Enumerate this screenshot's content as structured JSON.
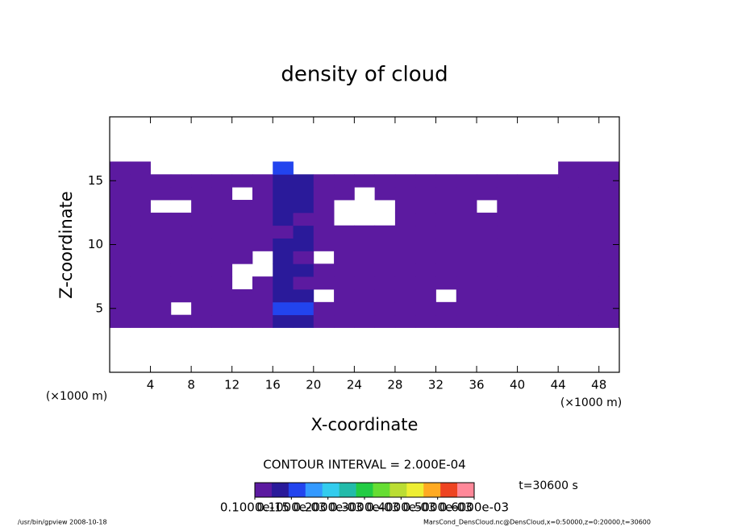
{
  "chart_data": {
    "type": "heatmap",
    "title": "density of cloud",
    "xlabel": "X-coordinate",
    "ylabel": "Z-coordinate",
    "xunit_left": "(×1000 m)",
    "xunit_right": "(×1000 m)",
    "contour_interval": "CONTOUR INTERVAL = 2.000E-04",
    "time_label": "t=30600 s",
    "footer_left": "/usr/bin/gpview   2008-10-18",
    "footer_right": "MarsCond_DensCloud.nc@DensCloud,x=0:50000,z=0:20000,t=30600",
    "xlim": [
      0,
      50
    ],
    "ylim": [
      0,
      20
    ],
    "xticks": [
      4,
      8,
      12,
      16,
      20,
      24,
      28,
      32,
      36,
      40,
      44,
      48
    ],
    "yticks": [
      5,
      10,
      15
    ],
    "xbins": [
      0,
      2,
      4,
      6,
      8,
      10,
      12,
      14,
      16,
      18,
      20,
      22,
      24,
      26,
      28,
      30,
      32,
      34,
      36,
      38,
      40,
      42,
      44,
      46,
      48,
      50
    ],
    "zbins": [
      3.5,
      4.5,
      5.5,
      6.5,
      7.5,
      8.5,
      9.5,
      10.5,
      11.5,
      12.5,
      13.5,
      14.5,
      15.5,
      16.5
    ],
    "zlim": [
      0,
      0.0006
    ],
    "colormap": [
      "#5c1aa0",
      "#2a1a9a",
      "#2244ee",
      "#3399ff",
      "#33ccee",
      "#22bbaa",
      "#22cc44",
      "#66dd33",
      "#bbdd33",
      "#eeee33",
      "#ffaa22",
      "#ee4422",
      "#ff8899"
    ],
    "colorbar_ticks": [
      {
        "value": 1e-16,
        "label": "0.1000e-15"
      },
      {
        "value": 0.0001,
        "label": "0.1000e-03"
      },
      {
        "value": 0.0002,
        "label": "0.2000e-03"
      },
      {
        "value": 0.0003,
        "label": "0.3000e-03"
      },
      {
        "value": 0.0004,
        "label": "0.4000e-03"
      },
      {
        "value": 0.0005,
        "label": "0.5000e-03"
      },
      {
        "value": 0.0006,
        "label": "0.6000e-03"
      }
    ],
    "field": [
      [
        3e-05,
        3e-05,
        3e-05,
        3e-05,
        3e-05,
        3e-05,
        3e-05,
        3e-05,
        8e-05,
        8e-05,
        3e-05,
        3e-05,
        3e-05,
        3e-05,
        3e-05,
        3e-05,
        3e-05,
        3e-05,
        3e-05,
        3e-05,
        3e-05,
        3e-05,
        3e-05,
        3e-05,
        3e-05
      ],
      [
        1e-05,
        1e-05,
        1e-05,
        null,
        1e-05,
        1e-05,
        1e-05,
        1e-05,
        0.00012,
        0.00012,
        1e-05,
        1e-05,
        1e-05,
        1e-05,
        1e-05,
        1e-05,
        1e-05,
        1e-05,
        1e-05,
        1e-05,
        1e-05,
        1e-05,
        1e-05,
        1e-05,
        1e-05
      ],
      [
        1e-05,
        1e-05,
        1e-05,
        1e-05,
        1e-05,
        1e-05,
        1e-05,
        1e-05,
        8e-05,
        8e-05,
        null,
        1e-05,
        1e-05,
        1e-05,
        1e-05,
        1e-05,
        null,
        1e-05,
        1e-05,
        1e-05,
        1e-05,
        1e-05,
        1e-05,
        1e-05,
        1e-05
      ],
      [
        1e-05,
        1e-05,
        1e-05,
        1e-05,
        1e-05,
        1e-05,
        null,
        1e-05,
        8e-05,
        3e-05,
        1e-05,
        1e-05,
        1e-05,
        1e-05,
        1e-05,
        1e-05,
        1e-05,
        1e-05,
        1e-05,
        1e-05,
        1e-05,
        1e-05,
        1e-05,
        1e-05,
        1e-05
      ],
      [
        1e-05,
        1e-05,
        1e-05,
        1e-05,
        1e-05,
        1e-05,
        null,
        null,
        8e-05,
        8e-05,
        1e-05,
        1e-05,
        1e-05,
        1e-05,
        1e-05,
        1e-05,
        1e-05,
        1e-05,
        1e-05,
        1e-05,
        1e-05,
        1e-05,
        1e-05,
        1e-05,
        1e-05
      ],
      [
        1e-05,
        1e-05,
        1e-05,
        3e-05,
        1e-05,
        1e-05,
        1e-05,
        null,
        8e-05,
        3e-05,
        null,
        1e-05,
        1e-05,
        1e-05,
        1e-05,
        1e-05,
        3e-05,
        1e-05,
        1e-05,
        1e-05,
        1e-05,
        1e-05,
        1e-05,
        1e-05,
        1e-05
      ],
      [
        1e-05,
        1e-05,
        1e-05,
        3e-05,
        1e-05,
        1e-05,
        1e-05,
        1e-05,
        8e-05,
        8e-05,
        1e-05,
        1e-05,
        1e-05,
        1e-05,
        1e-05,
        1e-05,
        1e-05,
        3e-05,
        1e-05,
        1e-05,
        1e-05,
        1e-05,
        1e-05,
        1e-05,
        1e-05
      ],
      [
        1e-05,
        1e-05,
        1e-05,
        1e-05,
        1e-05,
        1e-05,
        1e-05,
        1e-05,
        3e-05,
        8e-05,
        1e-05,
        1e-05,
        1e-05,
        1e-05,
        1e-05,
        1e-05,
        1e-05,
        1e-05,
        1e-05,
        1e-05,
        1e-05,
        1e-05,
        1e-05,
        1e-05,
        1e-05
      ],
      [
        1e-05,
        1e-05,
        1e-05,
        1e-05,
        1e-05,
        1e-05,
        1e-05,
        1e-05,
        8e-05,
        3e-05,
        1e-05,
        null,
        null,
        null,
        1e-05,
        1e-05,
        1e-05,
        1e-05,
        1e-05,
        1e-05,
        1e-05,
        1e-05,
        1e-05,
        1e-05,
        1e-05
      ],
      [
        1e-05,
        1e-05,
        null,
        null,
        1e-05,
        1e-05,
        1e-05,
        1e-05,
        8e-05,
        8e-05,
        1e-05,
        null,
        null,
        null,
        1e-05,
        1e-05,
        1e-05,
        1e-05,
        null,
        1e-05,
        1e-05,
        1e-05,
        1e-05,
        1e-05,
        1e-05
      ],
      [
        1e-05,
        1e-05,
        1e-05,
        1e-05,
        1e-05,
        1e-05,
        null,
        1e-05,
        8e-05,
        8e-05,
        1e-05,
        1e-05,
        null,
        1e-05,
        1e-05,
        1e-05,
        1e-05,
        1e-05,
        1e-05,
        1e-05,
        1e-05,
        1e-05,
        1e-05,
        1e-05,
        1e-05
      ],
      [
        1e-05,
        1e-05,
        1e-05,
        1e-05,
        1e-05,
        1e-05,
        1e-05,
        3e-05,
        8e-05,
        8e-05,
        1e-05,
        1e-05,
        1e-05,
        1e-05,
        1e-05,
        1e-05,
        1e-05,
        1e-05,
        1e-05,
        1e-05,
        1e-05,
        1e-05,
        1e-05,
        1e-05,
        1e-05
      ],
      [
        1e-05,
        1e-05,
        null,
        null,
        null,
        null,
        null,
        null,
        0.00012,
        null,
        null,
        null,
        null,
        null,
        null,
        null,
        null,
        null,
        null,
        null,
        null,
        null,
        1e-05,
        1e-05,
        1e-05
      ]
    ]
  }
}
